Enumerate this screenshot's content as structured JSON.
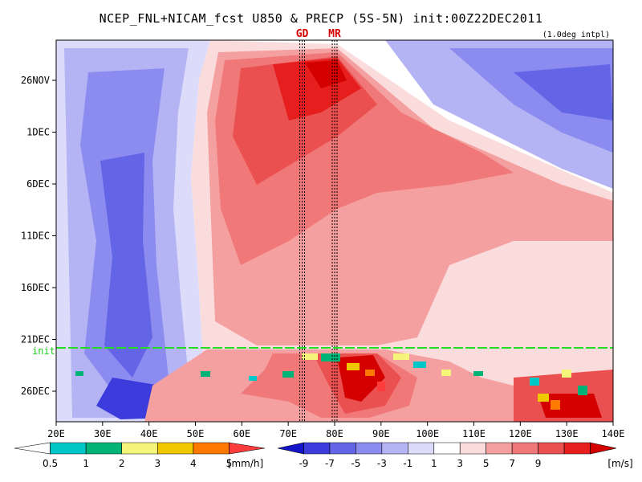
{
  "chart_data": {
    "type": "heatmap",
    "title": "NCEP_FNL+NICAM_fcst U850 & PRECP (5S-5N) init:00Z22DEC2011",
    "note": "(1.0deg intpl)",
    "xlabel": "",
    "ylabel": "",
    "x_ticks": [
      "20E",
      "30E",
      "40E",
      "50E",
      "60E",
      "70E",
      "80E",
      "90E",
      "100E",
      "110E",
      "120E",
      "130E",
      "140E"
    ],
    "x_range": [
      20,
      140
    ],
    "y_ticks": [
      "26NOV",
      "1DEC",
      "6DEC",
      "11DEC",
      "16DEC",
      "21DEC",
      "26DEC"
    ],
    "init_label": "init",
    "markers": [
      {
        "label": "GD",
        "lon": 73
      },
      {
        "label": "MR",
        "lon": 80
      }
    ],
    "colorbars": [
      {
        "name": "precip",
        "unit": "[mm/h]",
        "ticks": [
          "0.5",
          "1",
          "2",
          "3",
          "4",
          "5"
        ],
        "colors": [
          "#ffffff",
          "#00c8c8",
          "#00b478",
          "#f5f57a",
          "#f0c800",
          "#ff7800",
          "#ff3c3c"
        ]
      },
      {
        "name": "u850",
        "unit": "[m/s]",
        "ticks": [
          "-9",
          "-7",
          "-5",
          "-3",
          "-1",
          "1",
          "3",
          "5",
          "7",
          "9"
        ],
        "colors": [
          "#1414c8",
          "#3c3cdc",
          "#6464e6",
          "#8c8cf0",
          "#b4b4f5",
          "#dcdcfa",
          "#ffffff",
          "#fadcdc",
          "#f5a0a0",
          "#f07878",
          "#eb5050",
          "#e61e1e",
          "#d40000"
        ]
      }
    ]
  }
}
